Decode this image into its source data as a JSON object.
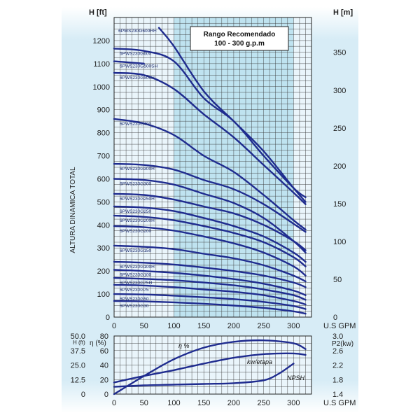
{
  "chart_data": [
    {
      "type": "line",
      "title": "Rango Recomendado",
      "subtitle": "100 - 300 g.p.m",
      "xlabel": "U.S GPM",
      "ylabel": "ALTURA DINAMICA TOTAL",
      "ylabel_left_unit": "H [ft]",
      "ylabel_right_unit": "H [m]",
      "xlim": [
        0,
        330
      ],
      "ylim": [
        0,
        1300
      ],
      "ylim_m": [
        0,
        396
      ],
      "xticks": [
        0,
        50,
        100,
        150,
        200,
        250,
        300
      ],
      "yticks": [
        0,
        100,
        200,
        300,
        400,
        500,
        600,
        700,
        800,
        900,
        1000,
        1100,
        1200
      ],
      "yticks_right": [
        0,
        50,
        100,
        150,
        200,
        250,
        300,
        350
      ],
      "recommended_range": [
        100,
        300
      ],
      "grid": true,
      "colors": {
        "curve": "#1f2c8f",
        "band": "#bfe3f0",
        "bg": "#ddeff7"
      },
      "series": [
        {
          "name": "6PWS230G600HH",
          "x": [
            75,
            100,
            150,
            200,
            250,
            300,
            320
          ],
          "y": [
            1255,
            1175,
            980,
            850,
            720,
            560,
            500
          ]
        },
        {
          "name": "6PWS230G600",
          "x": [
            0,
            50,
            100,
            150,
            200,
            250,
            300,
            320
          ],
          "y": [
            1165,
            1155,
            1110,
            950,
            850,
            700,
            560,
            520
          ]
        },
        {
          "name": "6PWS230G500SH",
          "x": [
            0,
            25,
            50
          ],
          "y": [
            1110,
            1105,
            1100
          ]
        },
        {
          "name": "6PWS230G500H",
          "x": [
            0,
            50,
            100,
            150,
            200,
            250,
            300,
            320
          ],
          "y": [
            1060,
            1050,
            990,
            880,
            780,
            660,
            540,
            490
          ]
        },
        {
          "name": "6PWS230G400",
          "x": [
            0,
            50,
            100,
            150,
            200,
            250,
            300,
            320
          ],
          "y": [
            860,
            840,
            790,
            700,
            630,
            530,
            420,
            380
          ]
        },
        {
          "name": "6PWS230G300H",
          "x": [
            0,
            50,
            100,
            150,
            200,
            250,
            300,
            320
          ],
          "y": [
            665,
            660,
            640,
            595,
            555,
            490,
            405,
            370
          ]
        },
        {
          "name": "6PWS230G300",
          "x": [
            0,
            50,
            100,
            150,
            200,
            250,
            300,
            320
          ],
          "y": [
            600,
            595,
            575,
            535,
            495,
            430,
            330,
            280
          ]
        },
        {
          "name": "6PWS230G250H",
          "x": [
            0,
            50,
            100,
            150,
            200,
            250,
            300,
            320
          ],
          "y": [
            535,
            530,
            510,
            480,
            450,
            400,
            330,
            290
          ]
        },
        {
          "name": "6PWS230G250",
          "x": [
            0,
            50,
            100,
            150,
            200,
            250,
            300,
            320
          ],
          "y": [
            480,
            475,
            460,
            430,
            395,
            350,
            280,
            240
          ]
        },
        {
          "name": "6PWS230G200H",
          "x": [
            0,
            50,
            100,
            150,
            200,
            250,
            300,
            320
          ],
          "y": [
            440,
            435,
            420,
            395,
            365,
            325,
            260,
            220
          ]
        },
        {
          "name": "6PWS230G200",
          "x": [
            0,
            50,
            100,
            150,
            200,
            250,
            300,
            320
          ],
          "y": [
            395,
            390,
            375,
            350,
            320,
            280,
            220,
            180
          ]
        },
        {
          "name": "6PWS230G150",
          "x": [
            0,
            50,
            100,
            150,
            200,
            250,
            300,
            320
          ],
          "y": [
            310,
            305,
            295,
            275,
            255,
            225,
            180,
            155
          ]
        },
        {
          "name": "6PWS230G100H",
          "x": [
            0,
            50,
            100,
            150,
            200,
            250,
            300,
            320
          ],
          "y": [
            240,
            236,
            228,
            215,
            200,
            180,
            150,
            130
          ]
        },
        {
          "name": "6PWS230G100",
          "x": [
            0,
            50,
            100,
            150,
            200,
            250,
            300,
            320
          ],
          "y": [
            205,
            200,
            192,
            180,
            165,
            145,
            115,
            95
          ]
        },
        {
          "name": "6PWS230G75H",
          "x": [
            0,
            50,
            100,
            150,
            200,
            250,
            300,
            320
          ],
          "y": [
            170,
            166,
            160,
            150,
            138,
            120,
            95,
            75
          ]
        },
        {
          "name": "6PWS230G75",
          "x": [
            0,
            50,
            100,
            150,
            200,
            250,
            300,
            320
          ],
          "y": [
            140,
            137,
            130,
            120,
            110,
            95,
            70,
            55
          ]
        },
        {
          "name": "6PWS230G50",
          "x": [
            0,
            50,
            100,
            150,
            200,
            250,
            300,
            320
          ],
          "y": [
            100,
            98,
            93,
            86,
            78,
            66,
            48,
            35
          ]
        },
        {
          "name": "6PWS230G30",
          "x": [
            0,
            50,
            100,
            150,
            200,
            250,
            300,
            320
          ],
          "y": [
            70,
            68,
            64,
            58,
            50,
            40,
            25,
            15
          ]
        }
      ]
    },
    {
      "type": "line",
      "title": "",
      "xlabel": "U.S GPM",
      "xlim": [
        0,
        330
      ],
      "xticks": [
        0,
        50,
        100,
        150,
        200,
        250,
        300
      ],
      "left_axes": [
        {
          "label": "H (ft)",
          "ticks": [
            "0",
            "12.5",
            "25.0",
            "37.5",
            "50.0"
          ]
        },
        {
          "label": "η (%)",
          "ticks": [
            "0",
            "20",
            "40",
            "60",
            "80"
          ]
        }
      ],
      "right_axis": {
        "label": "P2(kw)",
        "ticks": [
          "1.4",
          "1.8",
          "2.2",
          "2.6",
          "3.0"
        ]
      },
      "ylim": [
        0,
        80
      ],
      "grid": true,
      "series": [
        {
          "name": "η %",
          "x": [
            0,
            50,
            100,
            150,
            200,
            250,
            300,
            320
          ],
          "y": [
            0,
            25,
            48,
            64,
            72,
            74,
            70,
            62
          ]
        },
        {
          "name": "kw/etapa",
          "x": [
            0,
            50,
            100,
            150,
            200,
            250,
            300,
            320
          ],
          "y": [
            16,
            25,
            33,
            42,
            50,
            55,
            56,
            54
          ]
        },
        {
          "name": "NPSH",
          "x": [
            0,
            50,
            100,
            150,
            200,
            250,
            275,
            300
          ],
          "y": [
            10,
            12,
            13,
            14,
            15,
            19,
            28,
            42
          ]
        }
      ]
    }
  ]
}
